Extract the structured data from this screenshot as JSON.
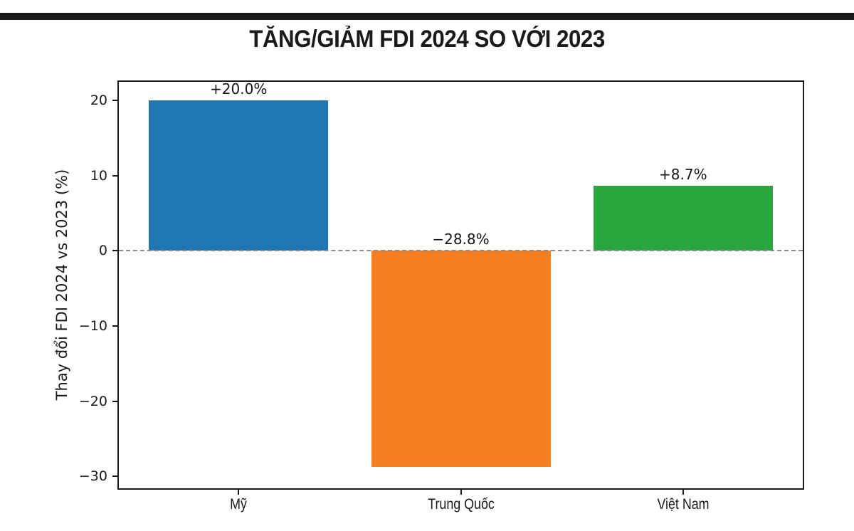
{
  "header": {
    "title": "TĂNG/GIẢM FDI 2024 SO VỚI 2023"
  },
  "chart_data": {
    "type": "bar",
    "title": "TĂNG/GIẢM FDI 2024 SO VỚI 2023",
    "categories": [
      "Mỹ",
      "Trung Quốc",
      "Việt Nam"
    ],
    "values": [
      20.0,
      -28.8,
      8.7
    ],
    "bar_labels": [
      "+20.0%",
      "−28.8%",
      "+8.7%"
    ],
    "bar_colors": [
      "#1f77b4",
      "#f57e20",
      "#2aa63e"
    ],
    "xlabel": "",
    "ylabel": "Thay đổi FDI 2024 vs 2023 (%)",
    "ylim": [
      -31.6,
      22.5
    ],
    "yticks": [
      20,
      10,
      0,
      -10,
      -20,
      -30
    ],
    "ytick_labels": [
      "20",
      "10",
      "0",
      "−10",
      "−20",
      "−30"
    ],
    "zero_line": {
      "value": 0,
      "style": "dashed",
      "color": "#8c8c8c"
    },
    "grid": false,
    "legend": false,
    "accent_colors": {
      "top_rule": "#1b1b1b",
      "spine": "#1a1a1a",
      "background": "#ffffff"
    }
  }
}
